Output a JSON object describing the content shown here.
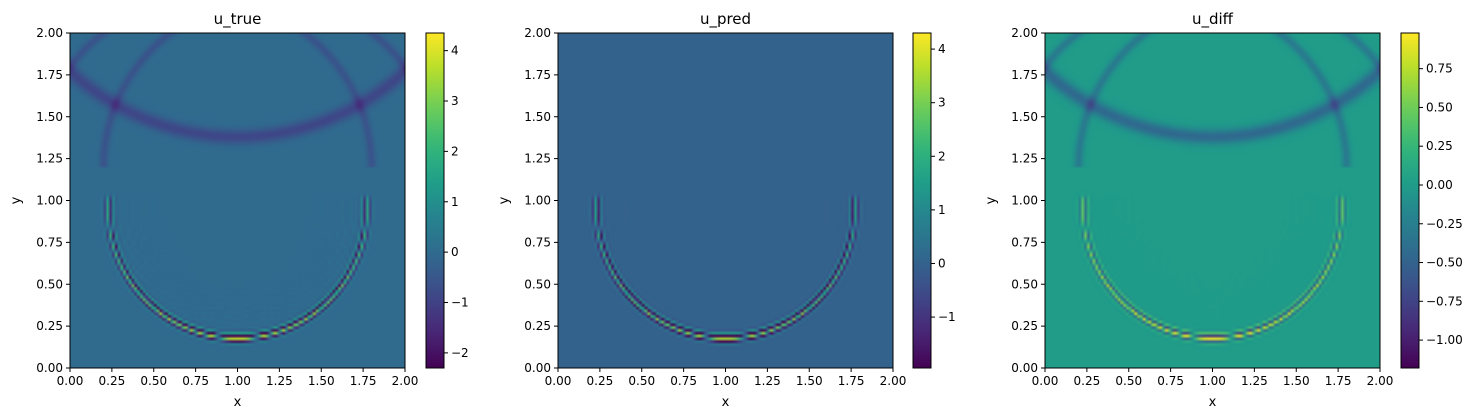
{
  "chart_data": [
    {
      "type": "heatmap",
      "title": "u_true",
      "xlabel": "x",
      "ylabel": "y",
      "xlim": [
        0,
        2
      ],
      "ylim": [
        0,
        2
      ],
      "xticks": [
        "0.00",
        "0.25",
        "0.50",
        "0.75",
        "1.00",
        "1.25",
        "1.50",
        "1.75",
        "2.00"
      ],
      "yticks": [
        "0.00",
        "0.25",
        "0.50",
        "0.75",
        "1.00",
        "1.25",
        "1.50",
        "1.75",
        "2.00"
      ],
      "colormap": "viridis",
      "colorbar": {
        "min": -2.3,
        "max": 4.35,
        "ticks": [
          "−2",
          "−1",
          "0",
          "1",
          "2",
          "3",
          "4"
        ],
        "tick_values": [
          -2,
          -1,
          0,
          1,
          2,
          3,
          4
        ]
      },
      "field": {
        "background": 0.0,
        "lower_arc": {
          "center": [
            1.0,
            0.95
          ],
          "radius": 0.77,
          "y_max": 1.0,
          "amplitude": 3.8,
          "ringing": 0.6
        },
        "upper_arc": {
          "center": [
            1.0,
            2.85
          ],
          "radius": 1.47,
          "amplitude": -0.9
        },
        "cross_arcs": {
          "radius": 1.0,
          "amplitude": -0.6
        }
      }
    },
    {
      "type": "heatmap",
      "title": "u_pred",
      "xlabel": "x",
      "ylabel": "y",
      "xlim": [
        0,
        2
      ],
      "ylim": [
        0,
        2
      ],
      "xticks": [
        "0.00",
        "0.25",
        "0.50",
        "0.75",
        "1.00",
        "1.25",
        "1.50",
        "1.75",
        "2.00"
      ],
      "yticks": [
        "0.00",
        "0.25",
        "0.50",
        "0.75",
        "1.00",
        "1.25",
        "1.50",
        "1.75",
        "2.00"
      ],
      "colormap": "viridis",
      "colorbar": {
        "min": -1.95,
        "max": 4.3,
        "ticks": [
          "−1",
          "0",
          "1",
          "2",
          "3",
          "4"
        ],
        "tick_values": [
          -1,
          0,
          1,
          2,
          3,
          4
        ]
      },
      "field": {
        "background": 0.0,
        "lower_arc": {
          "center": [
            1.0,
            0.95
          ],
          "radius": 0.77,
          "y_max": 1.0,
          "amplitude": 3.6,
          "ringing": 0.15
        },
        "upper_arc": {
          "center": [
            1.0,
            2.85
          ],
          "radius": 1.47,
          "amplitude": 0.0
        },
        "cross_arcs": {
          "radius": 1.0,
          "amplitude": 0.0
        }
      }
    },
    {
      "type": "heatmap",
      "title": "u_diff",
      "xlabel": "x",
      "ylabel": "y",
      "xlim": [
        0,
        2
      ],
      "ylim": [
        0,
        2
      ],
      "xticks": [
        "0.00",
        "0.25",
        "0.50",
        "0.75",
        "1.00",
        "1.25",
        "1.50",
        "1.75",
        "2.00"
      ],
      "yticks": [
        "0.00",
        "0.25",
        "0.50",
        "0.75",
        "1.00",
        "1.25",
        "1.50",
        "1.75",
        "2.00"
      ],
      "colormap": "viridis",
      "colorbar": {
        "min": -1.18,
        "max": 0.98,
        "ticks": [
          "−1.00",
          "−0.75",
          "−0.50",
          "−0.25",
          "0.00",
          "0.25",
          "0.50",
          "0.75"
        ],
        "tick_values": [
          -1,
          -0.75,
          -0.5,
          -0.25,
          0,
          0.25,
          0.5,
          0.75
        ]
      },
      "field": {
        "background": 0.0,
        "lower_arc": {
          "center": [
            1.0,
            0.95
          ],
          "radius": 0.77,
          "y_max": 1.0,
          "amplitude": 0.95,
          "ringing": 0.35
        },
        "upper_arc": {
          "center": [
            1.0,
            2.85
          ],
          "radius": 1.47,
          "amplitude": -0.45
        },
        "cross_arcs": {
          "radius": 1.0,
          "amplitude": -0.3
        }
      }
    }
  ]
}
